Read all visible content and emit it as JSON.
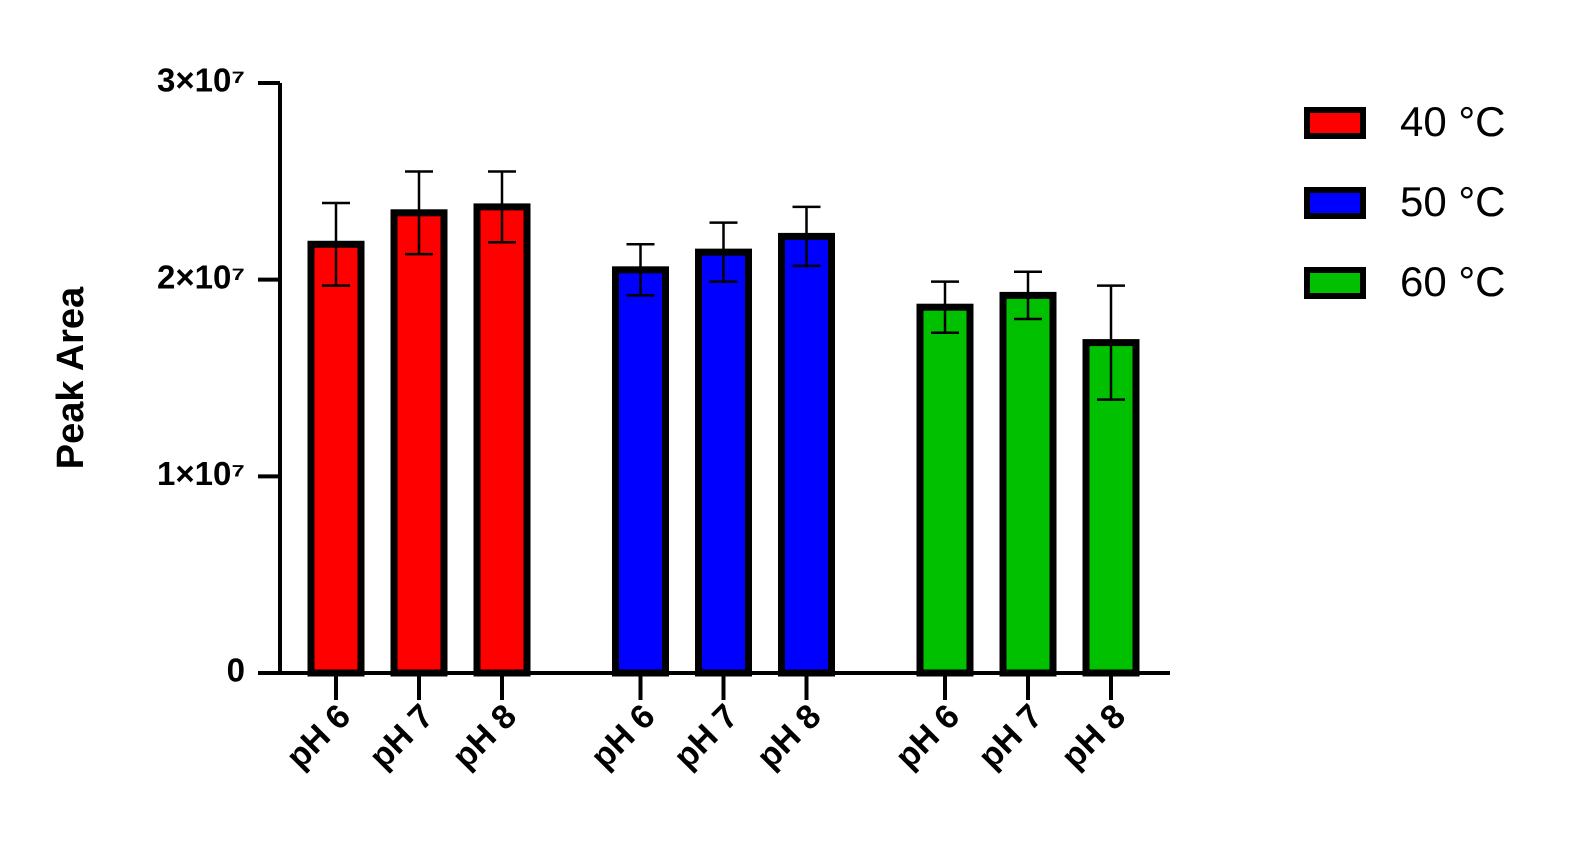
{
  "chart_data": {
    "type": "bar",
    "ylabel": "Peak Area",
    "categories": [
      "pH 6",
      "pH 7",
      "pH 8"
    ],
    "series": [
      {
        "name": "40 °C",
        "color": "#ff0000",
        "values": [
          21800000,
          23400000,
          23700000
        ],
        "errors": [
          2100000,
          2100000,
          1800000
        ]
      },
      {
        "name": "50 °C",
        "color": "#0000ff",
        "values": [
          20500000,
          21400000,
          22200000
        ],
        "errors": [
          1300000,
          1500000,
          1500000
        ]
      },
      {
        "name": "60 °C",
        "color": "#00c000",
        "values": [
          18600000,
          19200000,
          16800000
        ],
        "errors": [
          1300000,
          1200000,
          2900000
        ]
      }
    ],
    "ylim": [
      0,
      30000000
    ],
    "yticks": [
      0,
      {
        "value": 10000000,
        "label": "1×10⁷"
      },
      {
        "value": 20000000,
        "label": "2×10⁷"
      },
      {
        "value": 30000000,
        "label": "3×10⁷"
      }
    ],
    "legend": "right"
  }
}
